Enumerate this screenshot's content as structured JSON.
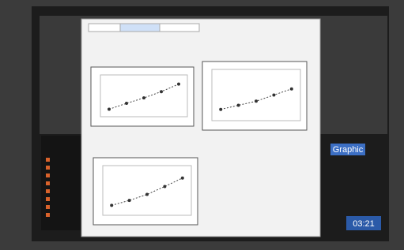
{
  "status": {
    "button": "Graphic",
    "time": "03:21"
  },
  "charts": [
    {
      "values": [
        18,
        32,
        45,
        60,
        78
      ]
    },
    {
      "values": [
        22,
        30,
        38,
        50,
        62
      ]
    },
    {
      "values": [
        20,
        30,
        42,
        58,
        75
      ]
    }
  ]
}
